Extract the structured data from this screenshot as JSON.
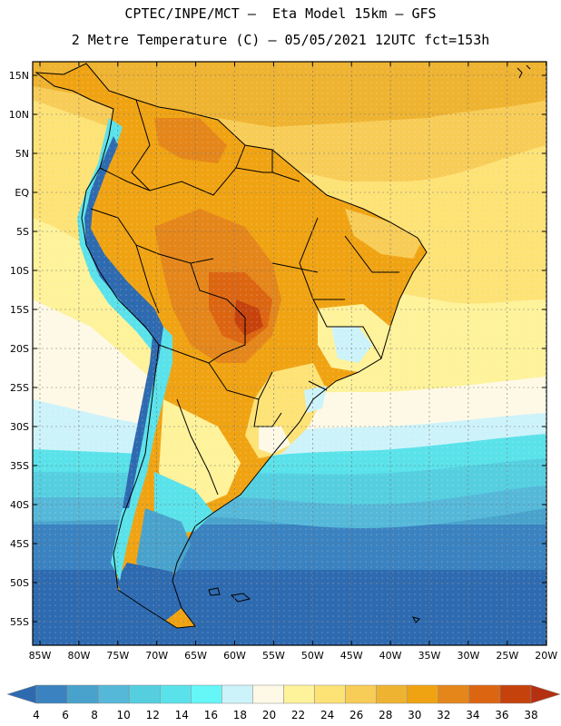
{
  "title": {
    "line1": "CPTEC/INPE/MCT –  Eta Model 15km – GFS",
    "line2": "2 Metre Temperature (C) – 05/05/2021 12UTC fct=153h"
  },
  "latitudes": [
    "15N",
    "10N",
    "5N",
    "EQ",
    "5S",
    "10S",
    "15S",
    "20S",
    "25S",
    "30S",
    "35S",
    "40S",
    "45S",
    "50S",
    "55S"
  ],
  "longitudes": [
    "85W",
    "80W",
    "75W",
    "70W",
    "65W",
    "60W",
    "55W",
    "50W",
    "45W",
    "40W",
    "35W",
    "30W",
    "25W",
    "20W"
  ],
  "colorbar": {
    "labels": [
      "4",
      "6",
      "8",
      "10",
      "12",
      "14",
      "16",
      "18",
      "20",
      "22",
      "24",
      "26",
      "28",
      "30",
      "32",
      "34",
      "36",
      "38"
    ],
    "colors": [
      "#2e6ab0",
      "#3a82c0",
      "#49a2cc",
      "#56b8d9",
      "#55cfe0",
      "#5ae2ea",
      "#65f6f7",
      "#cdf3fa",
      "#fef9e6",
      "#fef29a",
      "#fde276",
      "#f7cc57",
      "#eeb330",
      "#f0a312",
      "#e4861a",
      "#dc6512",
      "#c6420c",
      "#b53010"
    ]
  },
  "fields": {
    "domain": "South America and adjacent ocean",
    "warmest_region": "central Brazil",
    "coldest_region": "southern Andes / Patagonia"
  }
}
